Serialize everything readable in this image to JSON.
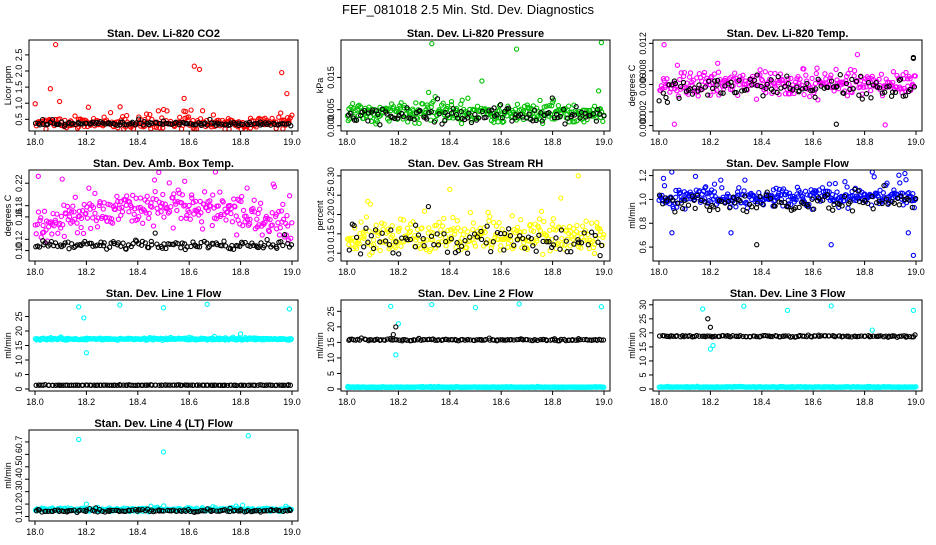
{
  "figure_title": "FEF_081018  2.5 Min. Std. Dev. Diagnostics",
  "colors": {
    "axis": "#000000",
    "black_series": "#000000"
  },
  "chart_data": [
    {
      "type": "scatter",
      "title": "Stan. Dev. Li-820 CO2",
      "ylabel": "Licor ppm",
      "xlim": [
        18.0,
        19.0
      ],
      "ylim": [
        0.2,
        2.9
      ],
      "xticks": [
        {
          "v": 18.0,
          "label": "18.0"
        },
        {
          "v": 18.2,
          "label": "18.2"
        },
        {
          "v": 18.4,
          "label": "18.4"
        },
        {
          "v": 18.6,
          "label": "18.6"
        },
        {
          "v": 18.8,
          "label": "18.8"
        },
        {
          "v": 19.0,
          "label": "19.0"
        }
      ],
      "yticks": [
        {
          "v": 0.5,
          "label": "0.5"
        },
        {
          "v": 1.0,
          "label": "1.0"
        },
        {
          "v": 1.5,
          "label": "1.5"
        },
        {
          "v": 2.0,
          "label": "2.0"
        },
        {
          "v": 2.5,
          "label": "2.5"
        }
      ],
      "series": [
        {
          "name": "red",
          "color": "#ff0000",
          "base": 0.38,
          "spread": 0.3,
          "count": 260,
          "outliers": [
            {
              "x": 18.08,
              "y": 2.82
            },
            {
              "x": 18.62,
              "y": 2.15
            },
            {
              "x": 18.64,
              "y": 2.05
            },
            {
              "x": 18.96,
              "y": 1.95
            },
            {
              "x": 18.98,
              "y": 1.3
            },
            {
              "x": 18.06,
              "y": 1.45
            },
            {
              "x": 18.58,
              "y": 1.15
            }
          ]
        },
        {
          "name": "black",
          "color": "#000000",
          "base": 0.36,
          "spread": 0.08,
          "count": 130,
          "outliers": []
        }
      ]
    },
    {
      "type": "scatter",
      "title": "Stan. Dev. Li-820 Pressure",
      "ylabel": "kPa",
      "xlim": [
        18.0,
        19.0
      ],
      "ylim": [
        -0.001,
        0.026
      ],
      "xticks": [
        {
          "v": 18.0,
          "label": "18.0"
        },
        {
          "v": 18.2,
          "label": "18.2"
        },
        {
          "v": 18.4,
          "label": "18.4"
        },
        {
          "v": 18.6,
          "label": "18.6"
        },
        {
          "v": 18.8,
          "label": "18.8"
        },
        {
          "v": 19.0,
          "label": "19.0"
        }
      ],
      "yticks": [
        {
          "v": 0.0,
          "label": "0.000"
        },
        {
          "v": 0.005,
          "label": "0.005"
        },
        {
          "v": 0.015,
          "label": "0.015"
        }
      ],
      "series": [
        {
          "name": "green",
          "color": "#00c000",
          "base": 0.004,
          "spread": 0.0045,
          "count": 300,
          "outliers": [
            {
              "x": 18.33,
              "y": 0.0255
            },
            {
              "x": 18.66,
              "y": 0.0238
            },
            {
              "x": 18.99,
              "y": 0.0258
            }
          ]
        },
        {
          "name": "black",
          "color": "#000000",
          "base": 0.003,
          "spread": 0.004,
          "count": 110,
          "outliers": []
        }
      ]
    },
    {
      "type": "scatter",
      "title": "Stan. Dev. Li-820 Temp.",
      "ylabel": "degrees C",
      "xlim": [
        18.0,
        19.0
      ],
      "ylim": [
        -0.0005,
        0.0122
      ],
      "xticks": [
        {
          "v": 18.0,
          "label": "18.0"
        },
        {
          "v": 18.2,
          "label": "18.2"
        },
        {
          "v": 18.4,
          "label": "18.4"
        },
        {
          "v": 18.6,
          "label": "18.6"
        },
        {
          "v": 18.8,
          "label": "18.8"
        },
        {
          "v": 19.0,
          "label": "19.0"
        }
      ],
      "yticks": [
        {
          "v": 0.0,
          "label": "0.000"
        },
        {
          "v": 0.002,
          "label": "0.002"
        },
        {
          "v": 0.006,
          "label": "0.006"
        },
        {
          "v": 0.008,
          "label": "0.008"
        },
        {
          "v": 0.012,
          "label": "0.012"
        }
      ],
      "series": [
        {
          "name": "magenta",
          "color": "#ff00ff",
          "base": 0.0062,
          "spread": 0.0028,
          "count": 280,
          "outliers": [
            {
              "x": 18.02,
              "y": 0.0118
            },
            {
              "x": 18.06,
              "y": 0.0002
            },
            {
              "x": 18.88,
              "y": 0.0001
            }
          ]
        },
        {
          "name": "black",
          "color": "#000000",
          "base": 0.0055,
          "spread": 0.0025,
          "count": 110,
          "outliers": [
            {
              "x": 18.69,
              "y": 0.0002
            },
            {
              "x": 18.99,
              "y": 0.0098
            }
          ]
        }
      ]
    },
    {
      "type": "scatter",
      "title": "Stan. Dev. Amb. Box Temp.",
      "ylabel": "degrees C",
      "xlim": [
        18.0,
        19.0
      ],
      "ylim": [
        0.085,
        0.24
      ],
      "xticks": [
        {
          "v": 18.0,
          "label": "18.0"
        },
        {
          "v": 18.2,
          "label": "18.2"
        },
        {
          "v": 18.4,
          "label": "18.4"
        },
        {
          "v": 18.6,
          "label": "18.6"
        },
        {
          "v": 18.8,
          "label": "18.8"
        },
        {
          "v": 19.0,
          "label": "19.0"
        }
      ],
      "yticks": [
        {
          "v": 0.1,
          "label": "0.10"
        },
        {
          "v": 0.12,
          "label": "0.12"
        },
        {
          "v": 0.16,
          "label": "0.16"
        },
        {
          "v": 0.18,
          "label": "0.18"
        },
        {
          "v": 0.22,
          "label": "0.22"
        }
      ],
      "series": [
        {
          "name": "magenta",
          "color": "#ff00ff",
          "base": 0.16,
          "spread": 0.045,
          "count": 300,
          "arch": 0.04,
          "outliers": []
        },
        {
          "name": "black",
          "color": "#000000",
          "base": 0.11,
          "spread": 0.012,
          "count": 130,
          "outliers": []
        }
      ]
    },
    {
      "type": "scatter",
      "title": "Stan. Dev. Gas Stream RH",
      "ylabel": "percent",
      "xlim": [
        18.0,
        19.0
      ],
      "ylim": [
        0.085,
        0.31
      ],
      "xticks": [
        {
          "v": 18.0,
          "label": "18.0"
        },
        {
          "v": 18.2,
          "label": "18.2"
        },
        {
          "v": 18.4,
          "label": "18.4"
        },
        {
          "v": 18.6,
          "label": "18.6"
        },
        {
          "v": 18.8,
          "label": "18.8"
        },
        {
          "v": 19.0,
          "label": "19.0"
        }
      ],
      "yticks": [
        {
          "v": 0.1,
          "label": "0.10"
        },
        {
          "v": 0.15,
          "label": "0.15"
        },
        {
          "v": 0.2,
          "label": "0.20"
        },
        {
          "v": 0.25,
          "label": "0.25"
        },
        {
          "v": 0.3,
          "label": "0.30"
        }
      ],
      "series": [
        {
          "name": "yellow",
          "color": "#ffff00",
          "base": 0.14,
          "spread": 0.06,
          "count": 300,
          "outliers": [
            {
              "x": 18.9,
              "y": 0.3
            },
            {
              "x": 18.4,
              "y": 0.265
            }
          ]
        },
        {
          "name": "black",
          "color": "#000000",
          "base": 0.13,
          "spread": 0.05,
          "count": 90,
          "outliers": []
        }
      ]
    },
    {
      "type": "scatter",
      "title": "Stan. Dev. Sample Flow",
      "ylabel": "ml/min",
      "xlim": [
        18.0,
        19.0
      ],
      "ylim": [
        0.5,
        1.23
      ],
      "xticks": [
        {
          "v": 18.0,
          "label": "18.0"
        },
        {
          "v": 18.2,
          "label": "18.2"
        },
        {
          "v": 18.4,
          "label": "18.4"
        },
        {
          "v": 18.6,
          "label": "18.6"
        },
        {
          "v": 18.8,
          "label": "18.8"
        },
        {
          "v": 19.0,
          "label": "19.0"
        }
      ],
      "yticks": [
        {
          "v": 0.6,
          "label": "0.6"
        },
        {
          "v": 0.8,
          "label": "0.8"
        },
        {
          "v": 1.0,
          "label": "1.0"
        },
        {
          "v": 1.2,
          "label": "1.2"
        }
      ],
      "series": [
        {
          "name": "blue",
          "color": "#0000ff",
          "base": 1.02,
          "spread": 0.12,
          "count": 320,
          "outliers": [
            {
              "x": 18.99,
              "y": 0.53
            },
            {
              "x": 18.05,
              "y": 0.72
            },
            {
              "x": 18.28,
              "y": 0.72
            },
            {
              "x": 18.67,
              "y": 0.62
            },
            {
              "x": 18.97,
              "y": 0.72
            }
          ]
        },
        {
          "name": "black",
          "color": "#000000",
          "base": 0.97,
          "spread": 0.1,
          "count": 100,
          "outliers": [
            {
              "x": 18.38,
              "y": 0.62
            }
          ]
        }
      ]
    },
    {
      "type": "scatter",
      "title": "Stan. Dev. Line 1 Flow",
      "ylabel": "ml/min",
      "xlim": [
        18.0,
        19.0
      ],
      "ylim": [
        0,
        30
      ],
      "xticks": [
        {
          "v": 18.0,
          "label": "18.0"
        },
        {
          "v": 18.2,
          "label": "18.2"
        },
        {
          "v": 18.4,
          "label": "18.4"
        },
        {
          "v": 18.6,
          "label": "18.6"
        },
        {
          "v": 18.8,
          "label": "18.8"
        },
        {
          "v": 19.0,
          "label": "19.0"
        }
      ],
      "yticks": [
        {
          "v": 0,
          "label": "0"
        },
        {
          "v": 5,
          "label": "5"
        },
        {
          "v": 10,
          "label": "10"
        },
        {
          "v": 15,
          "label": "15"
        },
        {
          "v": 20,
          "label": "20"
        },
        {
          "v": 25,
          "label": "25"
        }
      ],
      "series": [
        {
          "name": "cyan",
          "color": "#00ffff",
          "base": 17.2,
          "spread": 0.5,
          "count": 320,
          "outliers": [
            {
              "x": 18.17,
              "y": 28.3
            },
            {
              "x": 18.33,
              "y": 29.0
            },
            {
              "x": 18.5,
              "y": 28.0
            },
            {
              "x": 18.67,
              "y": 29.2
            },
            {
              "x": 18.99,
              "y": 27.6
            },
            {
              "x": 18.2,
              "y": 12.5
            },
            {
              "x": 18.19,
              "y": 24.5
            },
            {
              "x": 18.8,
              "y": 19.0
            }
          ]
        },
        {
          "name": "black",
          "color": "#000000",
          "base": 1.3,
          "spread": 0.12,
          "count": 130,
          "outliers": []
        }
      ]
    },
    {
      "type": "scatter",
      "title": "Stan. Dev. Line 2 Flow",
      "ylabel": "ml/min",
      "xlim": [
        18.0,
        19.0
      ],
      "ylim": [
        0,
        28
      ],
      "xticks": [
        {
          "v": 18.0,
          "label": "18.0"
        },
        {
          "v": 18.2,
          "label": "18.2"
        },
        {
          "v": 18.4,
          "label": "18.4"
        },
        {
          "v": 18.6,
          "label": "18.6"
        },
        {
          "v": 18.8,
          "label": "18.8"
        },
        {
          "v": 19.0,
          "label": "19.0"
        }
      ],
      "yticks": [
        {
          "v": 0,
          "label": "0"
        },
        {
          "v": 5,
          "label": "5"
        },
        {
          "v": 10,
          "label": "10"
        },
        {
          "v": 15,
          "label": "15"
        },
        {
          "v": 20,
          "label": "20"
        },
        {
          "v": 25,
          "label": "25"
        }
      ],
      "series": [
        {
          "name": "cyan",
          "color": "#00ffff",
          "base": 0.6,
          "spread": 0.15,
          "count": 320,
          "outliers": [
            {
              "x": 18.17,
              "y": 26.6
            },
            {
              "x": 18.33,
              "y": 27.2
            },
            {
              "x": 18.5,
              "y": 26.2
            },
            {
              "x": 18.67,
              "y": 27.4
            },
            {
              "x": 18.99,
              "y": 26.5
            },
            {
              "x": 18.19,
              "y": 11.0
            },
            {
              "x": 18.2,
              "y": 21.0
            }
          ]
        },
        {
          "name": "black",
          "color": "#000000",
          "base": 15.8,
          "spread": 0.35,
          "count": 130,
          "outliers": [
            {
              "x": 18.19,
              "y": 20.0
            },
            {
              "x": 18.18,
              "y": 17.5
            }
          ]
        }
      ]
    },
    {
      "type": "scatter",
      "title": "Stan. Dev. Line 3 Flow",
      "ylabel": "ml/min",
      "xlim": [
        18.0,
        19.0
      ],
      "ylim": [
        0,
        31
      ],
      "xticks": [
        {
          "v": 18.0,
          "label": "18.0"
        },
        {
          "v": 18.2,
          "label": "18.2"
        },
        {
          "v": 18.4,
          "label": "18.4"
        },
        {
          "v": 18.6,
          "label": "18.6"
        },
        {
          "v": 18.8,
          "label": "18.8"
        },
        {
          "v": 19.0,
          "label": "19.0"
        }
      ],
      "yticks": [
        {
          "v": 0,
          "label": "0"
        },
        {
          "v": 5,
          "label": "5"
        },
        {
          "v": 10,
          "label": "10"
        },
        {
          "v": 15,
          "label": "15"
        },
        {
          "v": 20,
          "label": "20"
        },
        {
          "v": 25,
          "label": "25"
        },
        {
          "v": 30,
          "label": "30"
        }
      ],
      "series": [
        {
          "name": "cyan",
          "color": "#00ffff",
          "base": 0.7,
          "spread": 0.15,
          "count": 320,
          "outliers": [
            {
              "x": 18.17,
              "y": 28.5
            },
            {
              "x": 18.33,
              "y": 29.5
            },
            {
              "x": 18.5,
              "y": 28.0
            },
            {
              "x": 18.67,
              "y": 29.6
            },
            {
              "x": 18.99,
              "y": 28.0
            },
            {
              "x": 18.2,
              "y": 14.2
            },
            {
              "x": 18.21,
              "y": 15.5
            },
            {
              "x": 18.83,
              "y": 21.0
            }
          ]
        },
        {
          "name": "black",
          "color": "#000000",
          "base": 18.8,
          "spread": 0.4,
          "count": 130,
          "outliers": [
            {
              "x": 18.19,
              "y": 25.0
            },
            {
              "x": 18.2,
              "y": 22.0
            }
          ]
        }
      ]
    },
    {
      "type": "scatter",
      "title": "Stan. Dev. Line 4 (LT) Flow",
      "ylabel": "ml/min",
      "xlim": [
        18.0,
        19.0
      ],
      "ylim": [
        0.08,
        0.78
      ],
      "xticks": [
        {
          "v": 18.0,
          "label": "18.0"
        },
        {
          "v": 18.2,
          "label": "18.2"
        },
        {
          "v": 18.4,
          "label": "18.4"
        },
        {
          "v": 18.6,
          "label": "18.6"
        },
        {
          "v": 18.8,
          "label": "18.8"
        },
        {
          "v": 19.0,
          "label": "19.0"
        }
      ],
      "yticks": [
        {
          "v": 0.1,
          "label": "0.1"
        },
        {
          "v": 0.2,
          "label": "0.2"
        },
        {
          "v": 0.3,
          "label": "0.3"
        },
        {
          "v": 0.4,
          "label": "0.4"
        },
        {
          "v": 0.5,
          "label": "0.5"
        },
        {
          "v": 0.6,
          "label": "0.6"
        },
        {
          "v": 0.7,
          "label": "0.7"
        }
      ],
      "series": [
        {
          "name": "cyan",
          "color": "#00ffff",
          "base": 0.155,
          "spread": 0.02,
          "count": 320,
          "outliers": [
            {
              "x": 18.17,
              "y": 0.72
            },
            {
              "x": 18.5,
              "y": 0.62
            },
            {
              "x": 18.83,
              "y": 0.75
            },
            {
              "x": 18.2,
              "y": 0.2
            }
          ]
        },
        {
          "name": "black",
          "color": "#000000",
          "base": 0.145,
          "spread": 0.015,
          "count": 120,
          "outliers": []
        }
      ]
    }
  ]
}
